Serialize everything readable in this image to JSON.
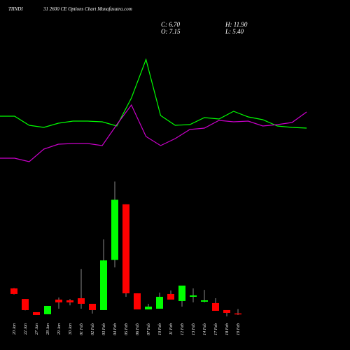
{
  "chart_data": [
    {
      "type": "candlestick",
      "title": "TIINDI",
      "subtitle": "31 2600 CE Options Chart Munafasutra.com",
      "annotations": [
        "C: 6.70",
        "O: 7.15",
        "H: 11.90",
        "L: 5.40"
      ],
      "categories": [
        "20 Jan",
        "22 Jan",
        "27 Jan",
        "28 Jan",
        "29 Jan",
        "30 Jan",
        "01 Feb",
        "02 Feb",
        "03 Feb",
        "04 Feb",
        "05 Feb",
        "06 Feb",
        "07 Feb",
        "10 Feb",
        "11 Feb",
        "12 Feb",
        "13 Feb",
        "14 Feb",
        "17 Feb",
        "18 Feb",
        "19 Feb"
      ],
      "open": [
        34.6,
        23,
        8.5,
        6.2,
        22.3,
        21.5,
        23.8,
        17.7,
        10.8,
        66,
        127,
        29.2,
        11.5,
        12.3,
        28.5,
        20.8,
        25.4,
        20,
        18.5,
        10.8,
        7.15
      ],
      "high": [
        35,
        23,
        8.5,
        15.4,
        24.6,
        23,
        56,
        17.7,
        88.5,
        152,
        127,
        29.2,
        17.7,
        30,
        32.3,
        37.7,
        34.6,
        33,
        23.8,
        10.8,
        11.9
      ],
      "low": [
        28,
        10.5,
        5.4,
        6.2,
        12.3,
        16,
        12.3,
        6.9,
        10.8,
        57.7,
        25.4,
        11.5,
        11.5,
        12.3,
        22.3,
        14.6,
        19.2,
        19.2,
        10,
        3.8,
        5.4
      ],
      "close": [
        28.5,
        10.8,
        5.4,
        15.4,
        19.2,
        19.2,
        17.7,
        10.8,
        65.4,
        132,
        29.2,
        11.5,
        14.6,
        25.4,
        22.3,
        37.7,
        26.9,
        21.5,
        10,
        7.7,
        6.7
      ],
      "up_color": "#00ff00",
      "down_color": "#ff0000",
      "wick_color": "#888888",
      "ylim": [
        0,
        190
      ]
    },
    {
      "type": "line",
      "categories": [
        null,
        null,
        null,
        null,
        null,
        null,
        null,
        null,
        null,
        null,
        null,
        null,
        null,
        null,
        null,
        null,
        null,
        null,
        null,
        null,
        null,
        null
      ],
      "series": [
        {
          "color": "#00ff00",
          "values": [
            42,
            42,
            35.5,
            34,
            37,
            38.5,
            38.5,
            38,
            35,
            55,
            82.5,
            42.5,
            35.5,
            36,
            41,
            40,
            45.5,
            41.5,
            39.5,
            35,
            34,
            33.5
          ]
        },
        {
          "color": "#cc00cc",
          "values": [
            12,
            12,
            9.5,
            18.5,
            22,
            22.5,
            22.5,
            21,
            36,
            50,
            27.5,
            21,
            26,
            32.5,
            33.5,
            39,
            38,
            38.5,
            35,
            36,
            37.5,
            45
          ]
        }
      ],
      "ylim": [
        0,
        100
      ]
    }
  ]
}
